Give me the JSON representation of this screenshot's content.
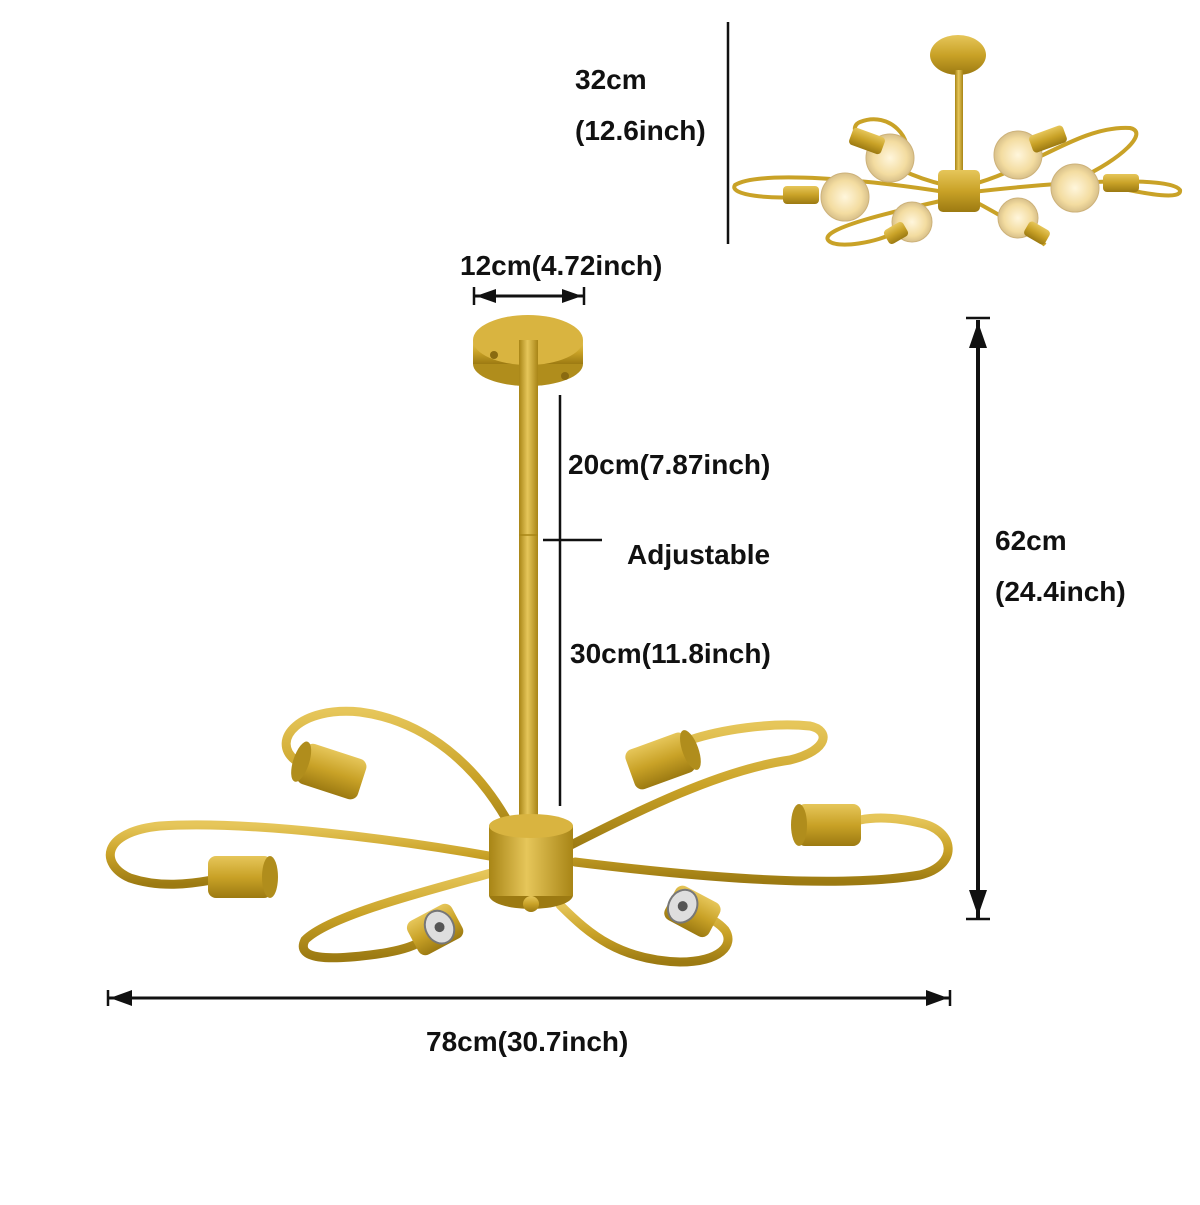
{
  "labels": {
    "mount_width": "12cm(4.72inch)",
    "rod_upper": "20cm(7.87inch)",
    "adjustable": "Adjustable",
    "rod_lower": "30cm(11.8inch)",
    "total_height_cm": "62cm",
    "total_height_in": "(24.4inch)",
    "total_width": "78cm(30.7inch)",
    "flush_height_cm": "32cm",
    "flush_height_in": "(12.6inch)"
  },
  "colors": {
    "gold": "#c9a227",
    "gold_dark": "#9c7a12",
    "gold_light": "#e6c65a",
    "dimension_line": "#111111",
    "bulb_glow": "#f7e3b0"
  },
  "product": {
    "arms": 6,
    "finish": "gold"
  }
}
